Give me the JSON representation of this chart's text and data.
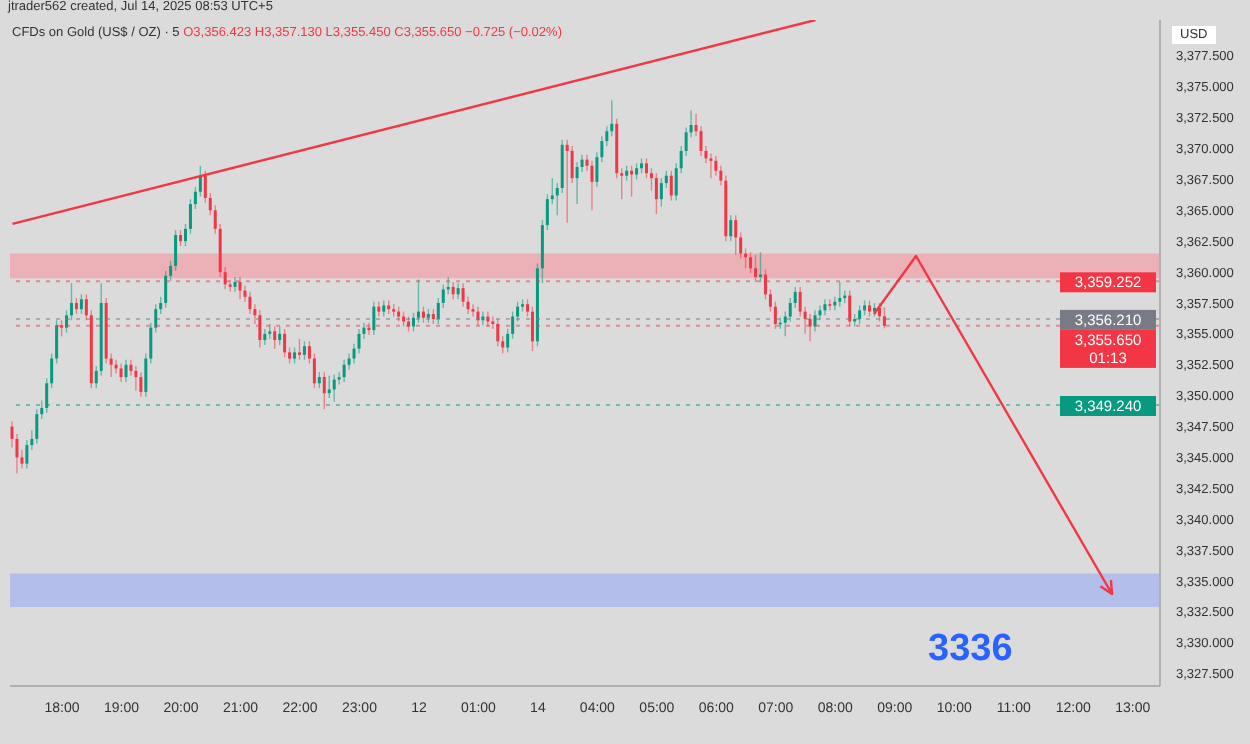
{
  "chart_data": {
    "type": "candlestick",
    "title": "CFDs on Gold (US$ / OZ) · 5",
    "subtitle": "O3,356.423 H3,357.130 L3,355.450 C3,355.650 −0.725 (−0.02%)",
    "ylabel": "USD",
    "annotations": [
      "jtrader562 created, Jul 14, 2025 08:53 UTC+5",
      "3336"
    ],
    "categories": [
      null,
      null,
      null,
      null,
      null,
      null,
      null,
      null,
      null,
      null,
      "18:00",
      null,
      null,
      null,
      null,
      null,
      null,
      null,
      null,
      null,
      null,
      null,
      "19:00",
      null,
      null,
      null,
      null,
      null,
      null,
      null,
      null,
      null,
      null,
      null,
      "20:00",
      null,
      null,
      null,
      null,
      null,
      null,
      null,
      null,
      null,
      null,
      null,
      "21:00",
      null,
      null,
      null,
      null,
      null,
      null,
      null,
      null,
      null,
      null,
      null,
      "22:00",
      null,
      null,
      null,
      null,
      null,
      null,
      null,
      null,
      null,
      null,
      null,
      "23:00",
      null,
      null,
      null,
      null,
      null,
      null,
      null,
      null,
      null,
      null,
      null,
      "12",
      null,
      null,
      null,
      null,
      null,
      null,
      null,
      null,
      null,
      null,
      null,
      "01:00",
      null,
      null,
      null,
      null,
      null,
      null,
      null,
      null,
      null,
      null,
      null,
      "14",
      null,
      null,
      null,
      null,
      null,
      null,
      null,
      null,
      null,
      null,
      null,
      "04:00",
      null,
      null,
      null,
      null,
      null,
      null,
      null,
      null,
      null,
      null,
      null,
      "05:00",
      null,
      null,
      null,
      null,
      null,
      null,
      null,
      null,
      null,
      null,
      null,
      "06:00",
      null,
      null,
      null,
      null,
      null,
      null,
      null,
      null,
      null,
      null,
      null,
      "07:00",
      null,
      null,
      null,
      null,
      null,
      null,
      null,
      null,
      null,
      null,
      null,
      "08:00",
      null,
      null,
      null,
      null,
      null,
      null,
      null,
      null,
      null,
      null,
      null,
      "09:00",
      null,
      null,
      null,
      null,
      null,
      null,
      null,
      null,
      null,
      null,
      null,
      "10:00",
      null,
      null,
      null,
      null,
      null,
      null,
      null,
      null,
      null,
      null,
      null,
      "11:00",
      null,
      null,
      null,
      null,
      null,
      null,
      null,
      null,
      null,
      null,
      null,
      "12:00",
      null,
      null,
      null,
      null,
      null,
      null,
      null,
      null,
      null,
      null,
      null,
      "13:00",
      null,
      null,
      null,
      null,
      null
    ],
    "ohlc": [
      [
        3347.5,
        3347.9,
        3345.8,
        3346.5
      ],
      [
        3346.5,
        3346.9,
        3343.7,
        3345
      ],
      [
        3345,
        3345.6,
        3344.1,
        3344.5
      ],
      [
        3344.5,
        3346.4,
        3344.1,
        3346
      ],
      [
        3346,
        3347.2,
        3345.6,
        3346.5
      ],
      [
        3346.5,
        3348.9,
        3346.1,
        3348.5
      ],
      [
        3348.5,
        3349.6,
        3348.1,
        3349
      ],
      [
        3349,
        3351.4,
        3348.6,
        3351
      ],
      [
        3351,
        3353.4,
        3350.6,
        3353
      ],
      [
        3353,
        3356.1,
        3352.6,
        3355.7
      ],
      [
        3355.7,
        3356.1,
        3354.8,
        3355.5
      ],
      [
        3355.5,
        3356.9,
        3355.1,
        3356.5
      ],
      [
        3356.5,
        3359.1,
        3356.1,
        3357.5
      ],
      [
        3357.5,
        3357.9,
        3356.6,
        3357
      ],
      [
        3357,
        3358.2,
        3356.6,
        3357.8
      ],
      [
        3357.8,
        3358.2,
        3356.1,
        3356.5
      ],
      [
        3356.5,
        3356.9,
        3350.6,
        3351
      ],
      [
        3351,
        3352.4,
        3350.6,
        3352
      ],
      [
        3352,
        3359.1,
        3351.6,
        3357.5
      ],
      [
        3357.5,
        3357.9,
        3352.6,
        3353
      ],
      [
        3353,
        3353.4,
        3351.5,
        3352.5
      ],
      [
        3352.5,
        3352.9,
        3351.8,
        3352.2
      ],
      [
        3352.2,
        3352.6,
        3351.1,
        3351.5
      ],
      [
        3351.5,
        3352.9,
        3351.1,
        3352.5
      ],
      [
        3352.5,
        3352.9,
        3351.6,
        3352
      ],
      [
        3352,
        3352.4,
        3350.4,
        3351.5
      ],
      [
        3351.5,
        3351.9,
        3349.9,
        3350.3
      ],
      [
        3350.3,
        3353.4,
        3349.9,
        3353
      ],
      [
        3353,
        3355.9,
        3352.6,
        3355.5
      ],
      [
        3355.5,
        3357.4,
        3355.1,
        3357
      ],
      [
        3357,
        3358,
        3356.6,
        3357.5
      ],
      [
        3357.5,
        3360.1,
        3357.1,
        3359.7
      ],
      [
        3359.7,
        3360.9,
        3359.3,
        3360.5
      ],
      [
        3360.5,
        3363.4,
        3360.1,
        3363
      ],
      [
        3363,
        3363.4,
        3362.1,
        3362.5
      ],
      [
        3362.5,
        3363.9,
        3362.1,
        3363.5
      ],
      [
        3363.5,
        3365.9,
        3363.1,
        3365.5
      ],
      [
        3365.5,
        3366.9,
        3365.1,
        3366.5
      ],
      [
        3366.5,
        3368.6,
        3366.1,
        3367.8
      ],
      [
        3367.8,
        3368.2,
        3365.6,
        3366
      ],
      [
        3366,
        3366.4,
        3364.6,
        3365
      ],
      [
        3365,
        3365.4,
        3363.1,
        3363.5
      ],
      [
        3363.5,
        3363.9,
        3359.6,
        3360
      ],
      [
        3360,
        3360.4,
        3358.6,
        3359
      ],
      [
        3359,
        3359.4,
        3358.4,
        3358.8
      ],
      [
        3358.8,
        3359.6,
        3358.4,
        3359.2
      ],
      [
        3359.2,
        3359.6,
        3357.8,
        3358.5
      ],
      [
        3358.5,
        3358.9,
        3357.6,
        3358
      ],
      [
        3358,
        3358.4,
        3356.6,
        3357
      ],
      [
        3357,
        3357.4,
        3355.8,
        3356.5
      ],
      [
        3356.5,
        3356.9,
        3353.9,
        3354.5
      ],
      [
        3354.5,
        3355.4,
        3354.1,
        3355
      ],
      [
        3355,
        3355.8,
        3354.6,
        3355.2
      ],
      [
        3355.2,
        3355.6,
        3353.8,
        3354.5
      ],
      [
        3354.5,
        3355.6,
        3354.1,
        3355
      ],
      [
        3355,
        3355.4,
        3353.1,
        3353.5
      ],
      [
        3353.5,
        3353.9,
        3352.6,
        3353
      ],
      [
        3353,
        3353.9,
        3352.6,
        3353.5
      ],
      [
        3353.5,
        3354.6,
        3352.9,
        3353.3
      ],
      [
        3353.3,
        3354.4,
        3352.9,
        3354
      ],
      [
        3354,
        3354.4,
        3352.6,
        3353
      ],
      [
        3353,
        3353.4,
        3350.6,
        3351
      ],
      [
        3351,
        3351.9,
        3350.6,
        3351.5
      ],
      [
        3351.5,
        3351.9,
        3348.9,
        3350.2
      ],
      [
        3350.2,
        3351.6,
        3349.8,
        3350.5
      ],
      [
        3350.5,
        3351.7,
        3349.5,
        3351.3
      ],
      [
        3351.3,
        3351.9,
        3350.9,
        3351.5
      ],
      [
        3351.5,
        3352.9,
        3351.1,
        3352.5
      ],
      [
        3352.5,
        3353.4,
        3352.1,
        3353
      ],
      [
        3353,
        3354.2,
        3352.6,
        3353.8
      ],
      [
        3353.8,
        3355.4,
        3353.4,
        3355
      ],
      [
        3355,
        3355.9,
        3354.6,
        3355.5
      ],
      [
        3355.5,
        3355.9,
        3354.9,
        3355.3
      ],
      [
        3355.3,
        3357.6,
        3354.9,
        3357.2
      ],
      [
        3357.2,
        3357.6,
        3356.4,
        3356.8
      ],
      [
        3356.8,
        3357.7,
        3356.4,
        3357.3
      ],
      [
        3357.3,
        3357.7,
        3356.6,
        3357
      ],
      [
        3357,
        3357.4,
        3356.4,
        3356.8
      ],
      [
        3356.8,
        3357.2,
        3356,
        3356.4
      ],
      [
        3356.4,
        3356.8,
        3355.6,
        3356
      ],
      [
        3356,
        3356.4,
        3355.2,
        3355.6
      ],
      [
        3355.6,
        3356.7,
        3355.2,
        3356.3
      ],
      [
        3356.3,
        3359.4,
        3355.9,
        3356.8
      ],
      [
        3356.8,
        3357.2,
        3355.9,
        3356.3
      ],
      [
        3356.3,
        3357,
        3355.9,
        3356.6
      ],
      [
        3356.6,
        3357,
        3355.8,
        3356.2
      ],
      [
        3356.2,
        3357.9,
        3355.8,
        3357.5
      ],
      [
        3357.5,
        3359,
        3357.1,
        3358.6
      ],
      [
        3358.6,
        3359.6,
        3358.2,
        3358.8
      ],
      [
        3358.8,
        3359.2,
        3357.8,
        3358.2
      ],
      [
        3358.2,
        3359.1,
        3357.8,
        3358.7
      ],
      [
        3358.7,
        3359.1,
        3357.2,
        3357.6
      ],
      [
        3357.6,
        3358,
        3356.6,
        3357
      ],
      [
        3357,
        3357.4,
        3356.4,
        3356.8
      ],
      [
        3356.8,
        3357.2,
        3355.7,
        3356.1
      ],
      [
        3356.1,
        3356.8,
        3355.7,
        3356.4
      ],
      [
        3356.4,
        3356.8,
        3355.6,
        3356
      ],
      [
        3356,
        3356.4,
        3355.4,
        3355.8
      ],
      [
        3355.8,
        3356.2,
        3354,
        3354.4
      ],
      [
        3354.4,
        3354.8,
        3353.4,
        3353.9
      ],
      [
        3353.9,
        3355.4,
        3353.5,
        3355
      ],
      [
        3355,
        3356.8,
        3354.6,
        3356.4
      ],
      [
        3356.4,
        3357.6,
        3356,
        3357.2
      ],
      [
        3357.2,
        3357.8,
        3356.8,
        3357.4
      ],
      [
        3357.4,
        3357.8,
        3356.4,
        3356.8
      ],
      [
        3356.8,
        3357.2,
        3353.6,
        3354.4
      ],
      [
        3354.4,
        3360.7,
        3354,
        3360.3
      ],
      [
        3360.3,
        3364.2,
        3359.1,
        3363.8
      ],
      [
        3363.8,
        3366.3,
        3363.4,
        3365.9
      ],
      [
        3365.9,
        3367.6,
        3365.5,
        3366.2
      ],
      [
        3366.2,
        3367.2,
        3364.6,
        3366.8
      ],
      [
        3366.8,
        3370.7,
        3366.4,
        3370.3
      ],
      [
        3370.3,
        3370.7,
        3364,
        3369.8
      ],
      [
        3369.8,
        3370.2,
        3367.2,
        3367.6
      ],
      [
        3367.6,
        3368.9,
        3365.5,
        3368.5
      ],
      [
        3368.5,
        3369.5,
        3368.1,
        3369.1
      ],
      [
        3369.1,
        3369.5,
        3368.2,
        3368.6
      ],
      [
        3368.6,
        3369,
        3365,
        3367.3
      ],
      [
        3367.3,
        3369.7,
        3366.9,
        3369.3
      ],
      [
        3369.3,
        3371,
        3368.9,
        3370.6
      ],
      [
        3370.6,
        3371.8,
        3370.2,
        3371.4
      ],
      [
        3371.4,
        3373.9,
        3371,
        3372
      ],
      [
        3372,
        3372.4,
        3367.6,
        3368
      ],
      [
        3368,
        3368.4,
        3365.9,
        3367.8
      ],
      [
        3367.8,
        3368.6,
        3367.4,
        3368.2
      ],
      [
        3368.2,
        3368.6,
        3366.1,
        3367.9
      ],
      [
        3367.9,
        3368.8,
        3367.5,
        3368.4
      ],
      [
        3368.4,
        3369.2,
        3368,
        3368.8
      ],
      [
        3368.8,
        3369.2,
        3367.6,
        3368
      ],
      [
        3368,
        3368.4,
        3366.6,
        3367.6
      ],
      [
        3367.6,
        3368,
        3364.7,
        3365.9
      ],
      [
        3365.9,
        3367.6,
        3365.3,
        3367.2
      ],
      [
        3367.2,
        3368.2,
        3366.8,
        3367.8
      ],
      [
        3367.8,
        3368.2,
        3365.8,
        3366.2
      ],
      [
        3366.2,
        3368.8,
        3365.8,
        3368.4
      ],
      [
        3368.4,
        3370.2,
        3368,
        3369.8
      ],
      [
        3369.8,
        3371.7,
        3369.4,
        3371.3
      ],
      [
        3371.3,
        3373.1,
        3370.9,
        3371.9
      ],
      [
        3371.9,
        3372.8,
        3371,
        3371.4
      ],
      [
        3371.4,
        3371.8,
        3369.4,
        3369.8
      ],
      [
        3369.8,
        3370.2,
        3368.8,
        3369.2
      ],
      [
        3369.2,
        3369.6,
        3367.6,
        3369
      ],
      [
        3369,
        3369.4,
        3367.8,
        3368.2
      ],
      [
        3368.2,
        3368.6,
        3367,
        3367.4
      ],
      [
        3367.4,
        3367.8,
        3362.5,
        3362.9
      ],
      [
        3362.9,
        3364.6,
        3362.5,
        3364.2
      ],
      [
        3364.2,
        3364.6,
        3361.4,
        3362.8
      ],
      [
        3362.8,
        3363.2,
        3361.1,
        3361.5
      ],
      [
        3361.5,
        3361.9,
        3360.3,
        3361.2
      ],
      [
        3361.2,
        3361.6,
        3359.9,
        3360.3
      ],
      [
        3360.3,
        3361.4,
        3359.2,
        3359.6
      ],
      [
        3359.6,
        3361.6,
        3359.2,
        3359.8
      ],
      [
        3359.8,
        3360.2,
        3357.8,
        3358.2
      ],
      [
        3358.2,
        3358.6,
        3356.8,
        3357.2
      ],
      [
        3357.2,
        3357.6,
        3355.4,
        3355.8
      ],
      [
        3355.8,
        3356.3,
        3355.4,
        3355.9
      ],
      [
        3355.9,
        3356.8,
        3354.8,
        3356.4
      ],
      [
        3356.4,
        3357.9,
        3356,
        3357.5
      ],
      [
        3357.5,
        3358.8,
        3357.1,
        3358.4
      ],
      [
        3358.4,
        3358.8,
        3356.4,
        3356.8
      ],
      [
        3356.8,
        3357.2,
        3355,
        3356.2
      ],
      [
        3356.2,
        3356.6,
        3354.4,
        3355.6
      ],
      [
        3355.6,
        3356.9,
        3355.2,
        3356.5
      ],
      [
        3356.5,
        3357.3,
        3356.1,
        3356.9
      ],
      [
        3356.9,
        3357.8,
        3356.5,
        3357.4
      ],
      [
        3357.4,
        3357.8,
        3356.9,
        3357.3
      ],
      [
        3357.3,
        3358,
        3356.9,
        3357.6
      ],
      [
        3357.6,
        3359.2,
        3357.2,
        3357.9
      ],
      [
        3357.9,
        3358.5,
        3357.5,
        3358.1
      ],
      [
        3358.1,
        3358.5,
        3355.6,
        3356
      ],
      [
        3356,
        3356.6,
        3355.6,
        3356.2
      ],
      [
        3356.2,
        3357.3,
        3355.8,
        3356.9
      ],
      [
        3356.9,
        3357.7,
        3356.5,
        3357.3
      ],
      [
        3357.3,
        3357.7,
        3356.4,
        3356.8
      ],
      [
        3356.8,
        3357.5,
        3356.4,
        3357.1
      ],
      [
        3357.1,
        3357.5,
        3356,
        3356.423
      ],
      [
        3356.423,
        3357.13,
        3355.45,
        3355.65
      ],
      null,
      null,
      null,
      null,
      null,
      null,
      null,
      null,
      null,
      null,
      null,
      null,
      null,
      null,
      null,
      null,
      null,
      null,
      null,
      null,
      null,
      null,
      null,
      null,
      null,
      null,
      null,
      null,
      null,
      null,
      null,
      null,
      null,
      null,
      null,
      null,
      null,
      null,
      null,
      null,
      null,
      null,
      null,
      null,
      null,
      null,
      null,
      null,
      null,
      null,
      null,
      null,
      null,
      null,
      null
    ],
    "series": [
      {
        "type": "line",
        "color": "#f23645",
        "values": [
          3363.9,
          null,
          null,
          null,
          null,
          null,
          null,
          null,
          null,
          null,
          null,
          null,
          null,
          null,
          null,
          null,
          null,
          null,
          null,
          null,
          null,
          null,
          null,
          null,
          null,
          null,
          null,
          null,
          null,
          null,
          null,
          null,
          null,
          null,
          null,
          null,
          null,
          null,
          null,
          null,
          null,
          null,
          null,
          null,
          null,
          null,
          null,
          null,
          null,
          null,
          null,
          null,
          null,
          null,
          null,
          null,
          null,
          null,
          null,
          null,
          null,
          null,
          null,
          null,
          null,
          null,
          null,
          null,
          null,
          null,
          null,
          null,
          null,
          null,
          null,
          null,
          null,
          null,
          null,
          null,
          null,
          null,
          null,
          null,
          null,
          null,
          null,
          null,
          null,
          null,
          null,
          null,
          null,
          null,
          null,
          null,
          null,
          null,
          null,
          null,
          null,
          null,
          null,
          null,
          null,
          null,
          null,
          null,
          null,
          null,
          null,
          null,
          null,
          null,
          null,
          null,
          null,
          null,
          null,
          null,
          null,
          null,
          null,
          null,
          null,
          null,
          null,
          null,
          null,
          null,
          null,
          null,
          null,
          null,
          null,
          null,
          null,
          null,
          null,
          null,
          null,
          null,
          null,
          null,
          null,
          null,
          null,
          null,
          null,
          null,
          null,
          null,
          null,
          null,
          null,
          null,
          null,
          null,
          null,
          null,
          null,
          null,
          3380.4,
          null,
          null,
          null,
          null,
          null,
          null,
          null,
          null,
          null,
          null,
          null,
          null,
          null,
          null,
          null,
          null,
          null,
          null,
          null,
          null,
          null,
          null,
          null,
          null,
          null,
          null,
          null,
          null,
          null,
          null,
          null,
          null,
          null,
          null,
          null,
          null,
          null,
          null,
          null,
          null,
          null,
          null,
          null,
          null,
          null,
          null,
          null,
          null,
          null,
          null,
          null,
          null,
          null,
          null,
          null,
          null,
          null,
          null,
          null,
          null,
          null,
          null,
          null,
          null,
          null,
          null,
          null,
          null,
          null
        ]
      }
    ],
    "ref_lines": [
      {
        "axis": "y",
        "value": 3355.65,
        "label": "3,355.650\n01:13",
        "color": "#f23645",
        "line_style": "dotted"
      },
      {
        "axis": "y",
        "value": 3359.252,
        "label": "3,359.252",
        "color": "#f23645",
        "line_style": "dotted"
      },
      {
        "axis": "y",
        "value": 3356.21,
        "label": "3,356.210",
        "color": "#787b86",
        "line_style": "dotted"
      },
      {
        "axis": "y",
        "value": 3349.24,
        "label": "3,349.240",
        "color": "#089981",
        "line_style": "dotted"
      }
    ],
    "bands": [
      {
        "axis": "y",
        "from": 3359.5,
        "to": 3361.5,
        "color": "#f2a3aa"
      },
      {
        "axis": "y",
        "from": 3332.9,
        "to": 3335.6,
        "color": "#a6b6ef"
      }
    ],
    "ylim": [
      3326.5,
      3380.4
    ],
    "yticks": [
      {
        "value": 3327.5,
        "label": "3,327.500"
      },
      {
        "value": 3330,
        "label": "3,330.000"
      },
      {
        "value": 3332.5,
        "label": "3,332.500"
      },
      {
        "value": 3335,
        "label": "3,335.000"
      },
      {
        "value": 3337.5,
        "label": "3,337.500"
      },
      {
        "value": 3340,
        "label": "3,340.000"
      },
      {
        "value": 3342.5,
        "label": "3,342.500"
      },
      {
        "value": 3345,
        "label": "3,345.000"
      },
      {
        "value": 3347.5,
        "label": "3,347.500"
      },
      {
        "value": 3350,
        "label": "3,350.000"
      },
      {
        "value": 3352.5,
        "label": "3,352.500"
      },
      {
        "value": 3355,
        "label": "3,355.000"
      },
      {
        "value": 3357.5,
        "label": "3,357.500"
      },
      {
        "value": 3360,
        "label": "3,360.000"
      },
      {
        "value": 3362.5,
        "label": "3,362.500"
      },
      {
        "value": 3365,
        "label": "3,365.000"
      },
      {
        "value": 3367.5,
        "label": "3,367.500"
      },
      {
        "value": 3370,
        "label": "3,370.000"
      },
      {
        "value": 3372.5,
        "label": "3,372.500"
      },
      {
        "value": 3375,
        "label": "3,375.000"
      },
      {
        "value": 3377.5,
        "label": "3,377.500"
      }
    ],
    "grid": false,
    "legend": false,
    "marker": "none",
    "line_style": "solid"
  }
}
